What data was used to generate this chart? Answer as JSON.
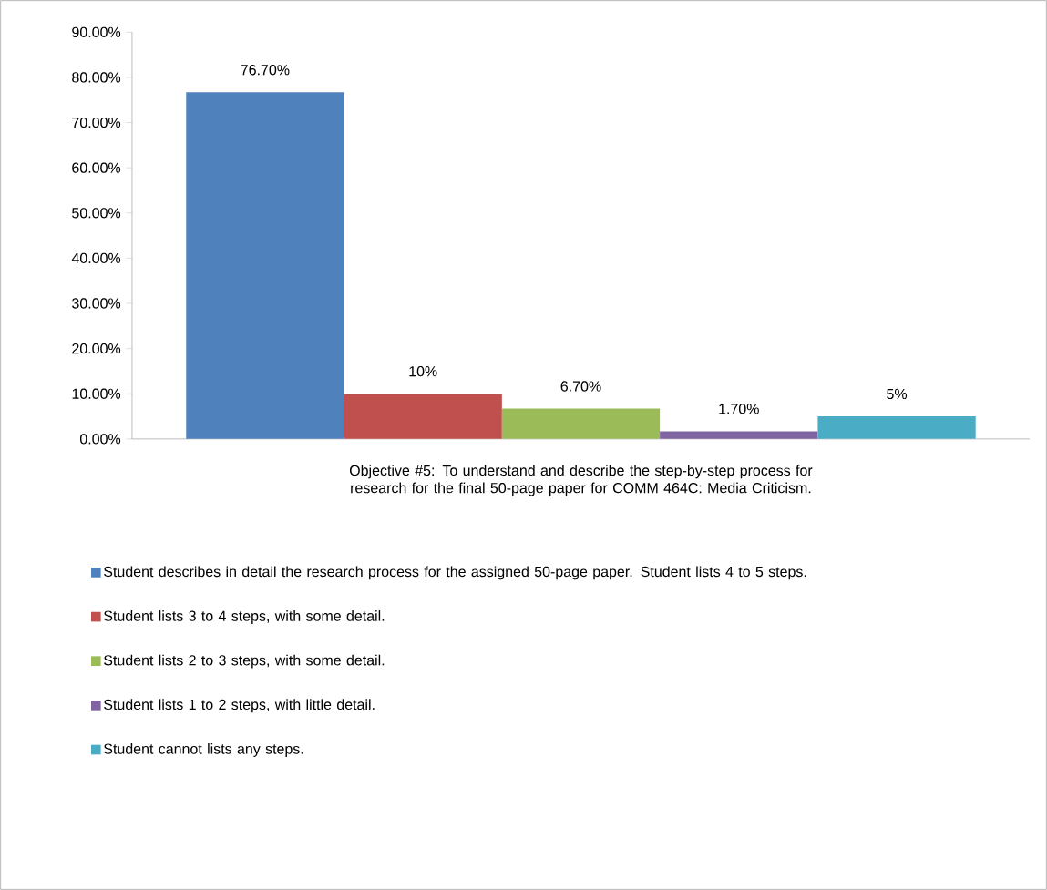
{
  "chart_data": {
    "type": "bar",
    "xlabel": "Objective #5:  To understand and describe the step-by-step process for research for the final 50-page paper for COMM 464C: Media Criticism.",
    "categories": [
      null
    ],
    "series": [
      {
        "name": "Student describes in detail the research process for the assigned 50-page paper.  Student lists 4 to 5 steps.",
        "color": "#4f81bd",
        "values": [
          76.7
        ],
        "value_labels": [
          "76.70%"
        ]
      },
      {
        "name": "Student lists 3 to 4 steps, with some detail.",
        "color": "#c0504d",
        "values": [
          10
        ],
        "value_labels": [
          "10%"
        ]
      },
      {
        "name": "Student lists 2 to 3 steps, with some detail.",
        "color": "#9bbb59",
        "values": [
          6.7
        ],
        "value_labels": [
          "6.70%"
        ]
      },
      {
        "name": "Student lists 1 to 2 steps, with little detail.",
        "color": "#8064a2",
        "values": [
          1.7
        ],
        "value_labels": [
          "1.70%"
        ]
      },
      {
        "name": "Student cannot lists any steps.",
        "color": "#4bacc6",
        "values": [
          5
        ],
        "value_labels": [
          "5%"
        ]
      }
    ],
    "ylim": [
      0,
      90
    ],
    "yticks": [
      {
        "value": 0,
        "label": "0.00%"
      },
      {
        "value": 10,
        "label": "10.00%"
      },
      {
        "value": 20,
        "label": "20.00%"
      },
      {
        "value": 30,
        "label": "30.00%"
      },
      {
        "value": 40,
        "label": "40.00%"
      },
      {
        "value": 50,
        "label": "50.00%"
      },
      {
        "value": 60,
        "label": "60.00%"
      },
      {
        "value": 70,
        "label": "70.00%"
      },
      {
        "value": 80,
        "label": "80.00%"
      },
      {
        "value": 90,
        "label": "90.00%"
      }
    ],
    "legend": "bottom"
  }
}
